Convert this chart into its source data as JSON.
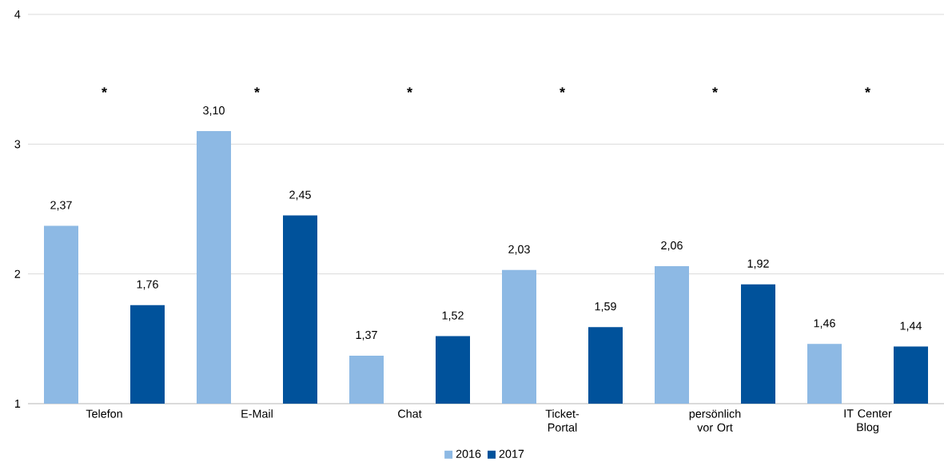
{
  "chart_data": {
    "type": "bar",
    "categories": [
      "Telefon",
      "E-Mail",
      "Chat",
      "Ticket-Portal",
      "persönlich vor Ort",
      "IT Center Blog"
    ],
    "series": [
      {
        "name": "2016",
        "color": "#8db9e4",
        "values": [
          2.37,
          3.1,
          1.37,
          2.03,
          2.06,
          1.46
        ],
        "value_labels": [
          "2,37",
          "3,10",
          "1,37",
          "2,03",
          "2,06",
          "1,46"
        ]
      },
      {
        "name": "2017",
        "color": "#00529b",
        "values": [
          1.76,
          2.45,
          1.52,
          1.59,
          1.92,
          1.44
        ],
        "value_labels": [
          "1,76",
          "2,45",
          "1,52",
          "1,59",
          "1,92",
          "1,44"
        ]
      }
    ],
    "ylim": [
      1,
      4
    ],
    "yticks": [
      1,
      2,
      3,
      4
    ],
    "grid": "y",
    "legend": "bottom",
    "annotations": [
      "*",
      "*",
      "*",
      "*",
      "*",
      "*"
    ]
  }
}
